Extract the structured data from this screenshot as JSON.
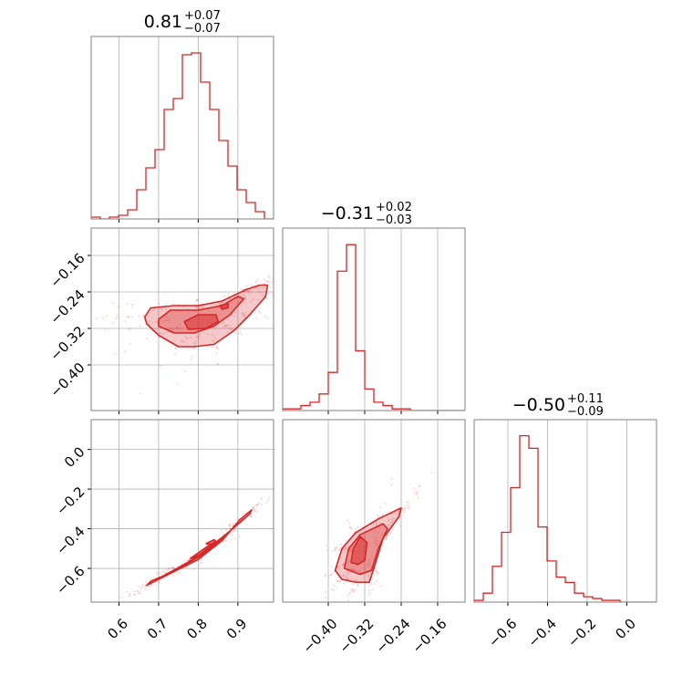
{
  "chart_data": [
    {
      "type": "histogram",
      "panel": "row0-col0",
      "title": {
        "median": "0.81",
        "plus": "+0.07",
        "minus": "−0.07"
      },
      "xlim": [
        0.53,
        0.99
      ],
      "xticks": [
        0.6,
        0.7,
        0.8,
        0.9
      ],
      "bins": [
        0.53,
        0.553,
        0.576,
        0.599,
        0.622,
        0.645,
        0.668,
        0.691,
        0.714,
        0.737,
        0.76,
        0.783,
        0.806,
        0.829,
        0.852,
        0.875,
        0.898,
        0.921,
        0.944,
        0.967,
        0.99
      ],
      "counts": [
        1,
        0,
        1,
        2,
        5,
        16,
        28,
        38,
        60,
        66,
        90,
        91,
        75,
        60,
        43,
        29,
        16,
        9,
        4,
        0
      ],
      "ymax": 100
    },
    {
      "type": "contour",
      "panel": "row1-col0",
      "xlim": [
        0.53,
        0.99
      ],
      "ylim": [
        -0.5,
        -0.1
      ],
      "xticks": [
        0.6,
        0.7,
        0.8,
        0.9
      ],
      "yticks": [
        -0.16,
        -0.24,
        -0.32,
        -0.4
      ],
      "ytick_labels": [
        "−0.16",
        "−0.24",
        "−0.32",
        "−0.40"
      ],
      "levels": [
        [
          [
            0.665,
            -0.295
          ],
          [
            0.68,
            -0.275
          ],
          [
            0.74,
            -0.27
          ],
          [
            0.8,
            -0.27
          ],
          [
            0.86,
            -0.26
          ],
          [
            0.92,
            -0.235
          ],
          [
            0.955,
            -0.225
          ],
          [
            0.975,
            -0.225
          ],
          [
            0.97,
            -0.25
          ],
          [
            0.93,
            -0.29
          ],
          [
            0.89,
            -0.325
          ],
          [
            0.84,
            -0.355
          ],
          [
            0.79,
            -0.36
          ],
          [
            0.75,
            -0.36
          ],
          [
            0.7,
            -0.335
          ],
          [
            0.67,
            -0.31
          ]
        ],
        [
          [
            0.7,
            -0.3
          ],
          [
            0.73,
            -0.28
          ],
          [
            0.8,
            -0.28
          ],
          [
            0.86,
            -0.27
          ],
          [
            0.9,
            -0.25
          ],
          [
            0.915,
            -0.255
          ],
          [
            0.88,
            -0.29
          ],
          [
            0.84,
            -0.315
          ],
          [
            0.79,
            -0.33
          ],
          [
            0.74,
            -0.33
          ],
          [
            0.7,
            -0.315
          ]
        ],
        [
          [
            0.765,
            -0.305
          ],
          [
            0.8,
            -0.29
          ],
          [
            0.845,
            -0.29
          ],
          [
            0.85,
            -0.305
          ],
          [
            0.82,
            -0.32
          ],
          [
            0.775,
            -0.322
          ]
        ],
        [
          [
            0.855,
            -0.27
          ],
          [
            0.875,
            -0.265
          ],
          [
            0.875,
            -0.275
          ],
          [
            0.86,
            -0.278
          ]
        ]
      ]
    },
    {
      "type": "histogram",
      "panel": "row1-col1",
      "title": {
        "median": "−0.31",
        "plus": "+0.02",
        "minus": "−0.03"
      },
      "xlim": [
        -0.5,
        -0.1
      ],
      "xticks": [
        -0.4,
        -0.32,
        -0.24,
        -0.16
      ],
      "bins": [
        -0.5,
        -0.48,
        -0.46,
        -0.44,
        -0.42,
        -0.4,
        -0.38,
        -0.36,
        -0.34,
        -0.32,
        -0.3,
        -0.28,
        -0.26,
        -0.24,
        -0.22,
        -0.2,
        -0.18,
        -0.16,
        -0.14,
        -0.12,
        -0.1
      ],
      "counts": [
        1,
        1,
        3,
        5,
        10,
        23,
        84,
        100,
        36,
        13,
        5,
        3,
        1,
        1,
        0,
        0,
        0,
        0,
        0,
        0
      ],
      "ymax": 110
    },
    {
      "type": "contour",
      "panel": "row2-col0",
      "xlim": [
        0.53,
        0.99
      ],
      "ylim": [
        -0.77,
        0.15
      ],
      "xticks": [
        0.6,
        0.7,
        0.8,
        0.9
      ],
      "yticks": [
        0.0,
        -0.2,
        -0.4,
        -0.6
      ],
      "ytick_labels": [
        "0.0",
        "−0.2",
        "−0.4",
        "−0.6"
      ],
      "levels": [
        [
          [
            0.67,
            -0.685
          ],
          [
            0.72,
            -0.635
          ],
          [
            0.8,
            -0.555
          ],
          [
            0.86,
            -0.46
          ],
          [
            0.905,
            -0.355
          ],
          [
            0.935,
            -0.305
          ],
          [
            0.93,
            -0.325
          ],
          [
            0.89,
            -0.395
          ],
          [
            0.83,
            -0.495
          ],
          [
            0.77,
            -0.575
          ],
          [
            0.71,
            -0.64
          ],
          [
            0.68,
            -0.665
          ]
        ],
        [
          [
            0.73,
            -0.62
          ],
          [
            0.79,
            -0.55
          ],
          [
            0.85,
            -0.46
          ],
          [
            0.875,
            -0.42
          ],
          [
            0.865,
            -0.44
          ],
          [
            0.82,
            -0.52
          ],
          [
            0.76,
            -0.59
          ]
        ],
        [
          [
            0.78,
            -0.55
          ],
          [
            0.83,
            -0.48
          ],
          [
            0.845,
            -0.47
          ],
          [
            0.82,
            -0.52
          ]
        ],
        [
          [
            0.82,
            -0.475
          ],
          [
            0.84,
            -0.455
          ],
          [
            0.845,
            -0.465
          ],
          [
            0.83,
            -0.48
          ]
        ]
      ]
    },
    {
      "type": "contour",
      "panel": "row2-col1",
      "xlim": [
        -0.5,
        -0.1
      ],
      "ylim": [
        -0.77,
        0.15
      ],
      "xticks": [
        -0.4,
        -0.32,
        -0.24,
        -0.16
      ],
      "levels": [
        [
          [
            -0.385,
            -0.61
          ],
          [
            -0.37,
            -0.5
          ],
          [
            -0.34,
            -0.42
          ],
          [
            -0.29,
            -0.35
          ],
          [
            -0.24,
            -0.295
          ],
          [
            -0.245,
            -0.34
          ],
          [
            -0.28,
            -0.45
          ],
          [
            -0.3,
            -0.6
          ],
          [
            -0.31,
            -0.67
          ],
          [
            -0.34,
            -0.67
          ],
          [
            -0.37,
            -0.655
          ]
        ],
        [
          [
            -0.365,
            -0.6
          ],
          [
            -0.355,
            -0.5
          ],
          [
            -0.33,
            -0.43
          ],
          [
            -0.28,
            -0.375
          ],
          [
            -0.27,
            -0.4
          ],
          [
            -0.29,
            -0.5
          ],
          [
            -0.305,
            -0.61
          ],
          [
            -0.33,
            -0.63
          ]
        ],
        [
          [
            -0.35,
            -0.57
          ],
          [
            -0.345,
            -0.5
          ],
          [
            -0.33,
            -0.44
          ],
          [
            -0.315,
            -0.47
          ],
          [
            -0.32,
            -0.56
          ],
          [
            -0.335,
            -0.58
          ]
        ]
      ]
    },
    {
      "type": "histogram",
      "panel": "row2-col2",
      "title": {
        "median": "−0.50",
        "plus": "+0.11",
        "minus": "−0.09"
      },
      "xlim": [
        -0.77,
        0.15
      ],
      "xticks": [
        -0.6,
        -0.4,
        -0.2,
        0.0
      ],
      "xtick_labels": [
        "−0.6",
        "−0.4",
        "−0.2",
        "0.0"
      ],
      "bins": [
        -0.77,
        -0.724,
        -0.678,
        -0.632,
        -0.586,
        -0.54,
        -0.494,
        -0.448,
        -0.402,
        -0.356,
        -0.31,
        -0.264,
        -0.218,
        -0.172,
        -0.126,
        -0.08,
        -0.034,
        0.012,
        0.058,
        0.104,
        0.15
      ],
      "counts": [
        1,
        5,
        20,
        39,
        64,
        93,
        86,
        42,
        23,
        14,
        11,
        5,
        3,
        2,
        1,
        1,
        0,
        0,
        0,
        0
      ],
      "ymax": 102
    }
  ],
  "x_tick_labels": {
    "col0": [
      "0.6",
      "0.7",
      "0.8",
      "0.9"
    ],
    "col1": [
      "−0.40",
      "−0.32",
      "−0.24",
      "−0.16"
    ],
    "col2": [
      "−0.6",
      "−0.4",
      "−0.2",
      "0.0"
    ]
  },
  "colors": {
    "series": "#d62728",
    "fill": "#f4b6b6",
    "frame": "#808080",
    "grid": "#b0b0b0"
  }
}
